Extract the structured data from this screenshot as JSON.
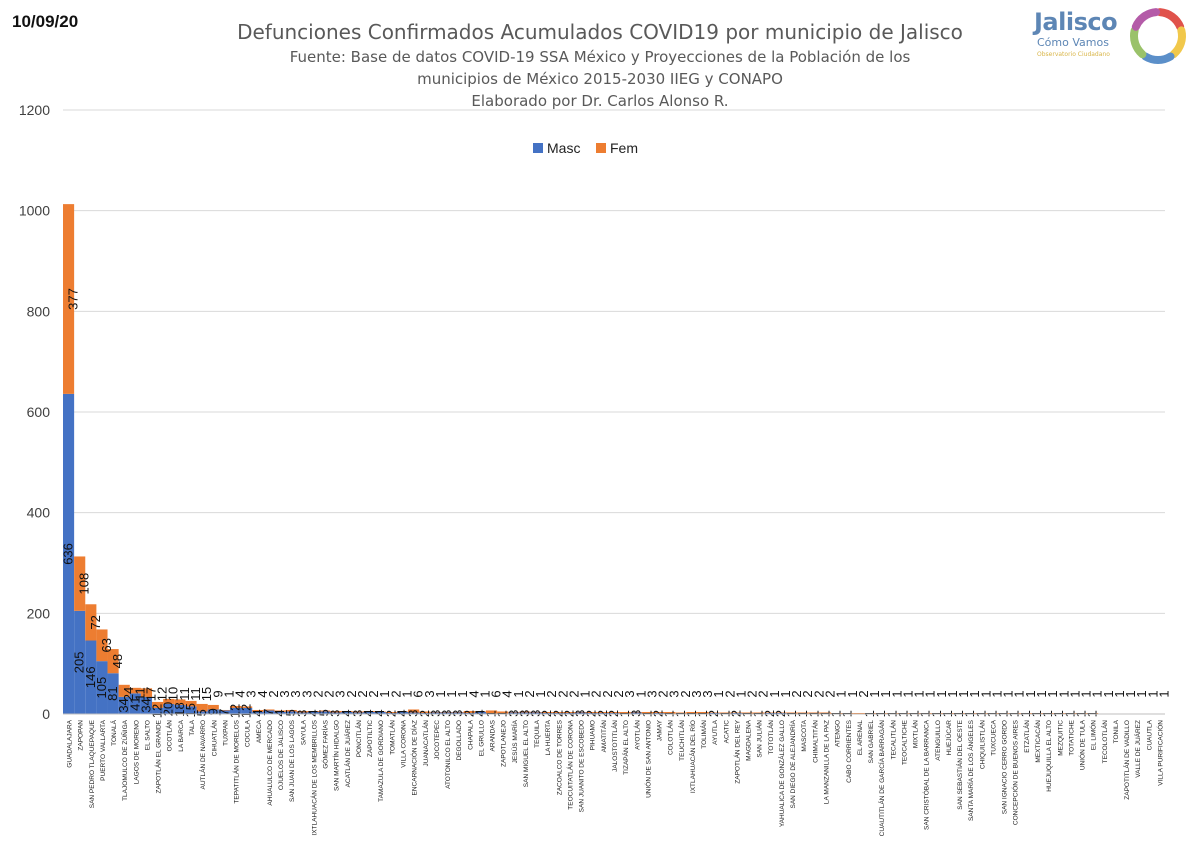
{
  "header": {
    "date": "10/09/20",
    "title": "Defunciones Confirmados Acumulados COVID19 por municipio de Jalisco",
    "subtitle_line1": "Fuente: Base de datos COVID-19 SSA México y Proyecciones de la Población de los",
    "subtitle_line2": "municipios de México 2015-2030 IIEG y CONAPO",
    "author": "Elaborado por Dr. Carlos Alonso R."
  },
  "logo": {
    "name": "Jalisco",
    "tagline": "Cómo Vamos",
    "small": "Observatorio Ciudadano",
    "colors": [
      "#e0524b",
      "#f1c84b",
      "#5b8fc9",
      "#9ac26a",
      "#b45ba8"
    ]
  },
  "colors": {
    "masc": "#4472c4",
    "fem": "#ed7d31",
    "grid": "#d9d9d9",
    "axis_text": "#404040"
  },
  "chart_data": {
    "type": "bar",
    "stacked": true,
    "grid": true,
    "legend_placement": "top-center",
    "ylim": [
      0,
      1200
    ],
    "yticks": [
      0,
      200,
      400,
      600,
      800,
      1000,
      1200
    ],
    "series": [
      {
        "name": "Masc",
        "color": "#4472c4",
        "values": [
          636,
          205,
          146,
          105,
          81,
          34,
          41,
          34,
          12,
          20,
          18,
          15,
          5,
          9,
          7,
          12,
          12,
          4,
          7,
          4,
          5,
          3,
          4,
          5,
          3,
          4,
          3,
          4,
          4,
          2,
          4,
          3,
          2,
          3,
          3,
          3,
          2,
          4,
          1,
          1,
          3,
          3,
          3,
          2,
          2,
          2,
          3,
          2,
          2,
          2,
          1,
          3,
          1,
          2,
          1,
          1,
          1,
          1,
          2,
          1,
          2,
          1,
          1,
          2,
          2,
          1,
          1,
          1,
          1,
          1,
          1,
          0,
          1,
          1,
          1,
          1,
          1,
          1,
          1,
          1,
          1,
          1,
          1,
          1,
          1,
          1,
          1,
          1,
          1,
          1,
          1,
          1,
          1,
          0,
          0,
          0,
          0,
          0,
          0
        ]
      },
      {
        "name": "Fem",
        "color": "#ed7d31",
        "values": [
          377,
          108,
          72,
          63,
          48,
          24,
          11,
          17,
          12,
          10,
          11,
          11,
          15,
          9,
          1,
          4,
          3,
          4,
          2,
          3,
          3,
          3,
          2,
          2,
          3,
          2,
          2,
          2,
          1,
          2,
          1,
          6,
          3,
          1,
          1,
          1,
          4,
          1,
          6,
          4,
          1,
          2,
          1,
          2,
          2,
          2,
          1,
          2,
          2,
          2,
          3,
          1,
          3,
          2,
          3,
          2,
          3,
          3,
          1,
          2,
          1,
          2,
          2,
          1,
          1,
          2,
          2,
          2,
          2,
          1,
          1,
          2,
          1,
          1,
          1,
          1,
          1,
          1,
          1,
          1,
          1,
          1,
          1,
          1,
          1,
          1,
          1,
          1,
          1,
          1,
          1,
          1,
          1,
          1,
          1,
          1,
          1,
          1,
          1
        ]
      }
    ],
    "categories": [
      "GUADALAJARA",
      "ZAPOPAN",
      "SAN PEDRO TLAQUEPAQUE",
      "PUERTO VALLARTA",
      "TONALÁ",
      "TLAJOMULCO DE ZÚÑIGA",
      "LAGOS DE MORENO",
      "EL SALTO",
      "ZAPOTLÁN EL GRANDE",
      "OCOTLÁN",
      "LA BARCA",
      "TALA",
      "AUTLÁN DE NAVARRO",
      "CIHUATLÁN",
      "TUXPAN",
      "TEPATITLÁN DE MORELOS",
      "COCULA",
      "AMECA",
      "AHUALULCO DE MERCADO",
      "OJUELOS DE JALISCO",
      "SAN JUAN DE LOS LAGOS",
      "SAYULA",
      "IXTLAHUACÁN DE LOS MEMBRILLOS",
      "GÓMEZ FARÍAS",
      "SAN MARTÍN HIDALGO",
      "ACATLÁN DE JUÁREZ",
      "PONCITLÁN",
      "ZAPOTILTIC",
      "TAMAZULA DE GORDIANO",
      "TOMATLÁN",
      "VILLA CORONA",
      "ENCARNACIÓN DE DÍAZ",
      "JUANACATLÁN",
      "JOCOTEPEC",
      "ATOTONILCO EL ALTO",
      "DEGOLLADO",
      "CHAPALA",
      "EL GRULLO",
      "ARANDAS",
      "ZAPOTLANEJO",
      "JESÚS MARÍA",
      "SAN MIGUEL EL ALTO",
      "TEQUILA",
      "LA HUERTA",
      "ZACOALCO DE TORRES",
      "TEOCUITATLÁN DE CORONA",
      "SAN JUANITO DE ESCOBEDO",
      "PIHUAMO",
      "AMATITÁN",
      "JALOSTOTITLÁN",
      "TIZAPÁN EL ALTO",
      "AYOTLÁN",
      "UNIÓN DE SAN ANTONIO",
      "JAMAY",
      "COLOTLÁN",
      "TEUCHITLÁN",
      "IXTLAHUACÁN DEL RÍO",
      "TOLIMÁN",
      "AYUTLA",
      "ACATIC",
      "ZAPOTLÁN DEL REY",
      "MAGDALENA",
      "SAN JULIÁN",
      "TOTOTLÁN",
      "YAHUALICA DE GONZÁLEZ GALLO",
      "SAN DIEGO DE ALEJANDRÍA",
      "MASCOTA",
      "CHIMALTITÁN",
      "LA MANZANILLA DE LA PAZ",
      "ATENGO",
      "CABO CORRIENTES",
      "EL ARENAL",
      "SAN GABRIEL",
      "CUAUTITLÁN DE GARCÍA BARRAGÁN",
      "TECALITLÁN",
      "TEOCALTICHE",
      "MIXTLÁN",
      "SAN CRISTÓBAL DE LA BARRANCA",
      "ATENGUILLO",
      "HUEJÚCAR",
      "SAN SEBASTIÁN DEL OESTE",
      "SANTA MARÍA DE LOS ÁNGELES",
      "CHIQUILISTLÁN",
      "TUXCUECA",
      "SAN IGNACIO CERRO GORDO",
      "CONCEPCIÓN DE BUENOS AIRES",
      "ETZATLÁN",
      "MEXTICACÁN",
      "HUEJUQUILLA EL ALTO",
      "MEZQUITIC",
      "TOTATICHE",
      "UNIÓN DE TULA",
      "EL LIMÓN",
      "TECOLOTLÁN",
      "TONILA",
      "ZAPOTITLÁN DE VADILLO",
      "VALLE DE JUÁREZ",
      "CUAUTLA",
      "VILLA PURIFICACIÓN"
    ]
  }
}
